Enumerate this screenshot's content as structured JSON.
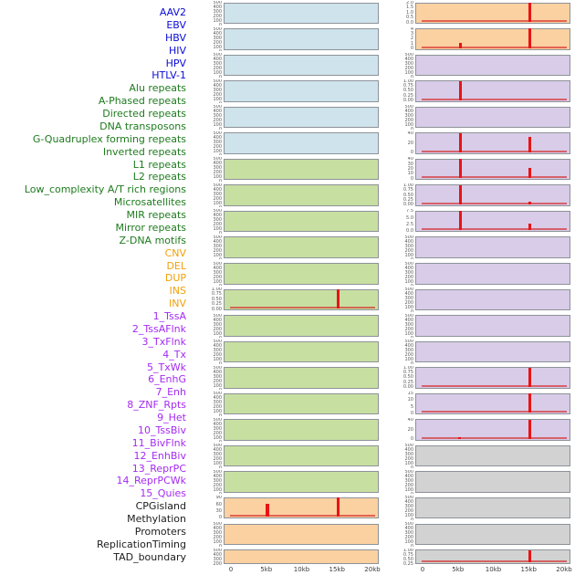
{
  "chart_data": {
    "type": "bar",
    "layout": "small-multiples, 2 columns x 22 rows, tracks listed top-to-bottom left column then right column",
    "x_axis": {
      "tick_labels": [
        "0",
        "5kb",
        "10kb",
        "15kb",
        "20kb"
      ],
      "tick_kb": [
        0,
        5,
        10,
        15,
        20
      ],
      "domain_kb": [
        0,
        20
      ]
    },
    "spike_color": "#e81414",
    "baseline_color": "rgba(214,40,40,0.65)",
    "categories": {
      "virus": {
        "label_color": "#0b0bd8",
        "panel_bg": "#cee3ec"
      },
      "repeats": {
        "label_color": "#1e7b1e",
        "panel_bg": "#c8dfa2"
      },
      "variants": {
        "label_color": "#f0a10c",
        "panel_bg": "#fbd1a1"
      },
      "chromatin": {
        "label_color": "#a42af2",
        "panel_bg": "#d8cce8"
      },
      "other": {
        "label_color": "#1c1c1c",
        "panel_bg": "#d2d2d2"
      }
    },
    "tracks": [
      {
        "label": "AAV2",
        "category": "virus",
        "column": "left",
        "row": 1,
        "y_ticks": [
          "500",
          "400",
          "300",
          "200",
          "100",
          "0"
        ],
        "spikes": [],
        "baseline": false
      },
      {
        "label": "EBV",
        "category": "virus",
        "column": "left",
        "row": 2,
        "y_ticks": [
          "500",
          "400",
          "300",
          "200",
          "100",
          "0"
        ],
        "spikes": [],
        "baseline": false
      },
      {
        "label": "HBV",
        "category": "virus",
        "column": "left",
        "row": 3,
        "y_ticks": [
          "500",
          "400",
          "300",
          "200",
          "100",
          "0"
        ],
        "spikes": [],
        "baseline": false
      },
      {
        "label": "HIV",
        "category": "virus",
        "column": "left",
        "row": 4,
        "y_ticks": [
          "500",
          "400",
          "300",
          "200",
          "100",
          "0"
        ],
        "spikes": [],
        "baseline": false
      },
      {
        "label": "HPV",
        "category": "virus",
        "column": "left",
        "row": 5,
        "y_ticks": [
          "500",
          "400",
          "300",
          "200",
          "100",
          "0"
        ],
        "spikes": [],
        "baseline": false
      },
      {
        "label": "HTLV-1",
        "category": "virus",
        "column": "left",
        "row": 6,
        "y_ticks": [
          "500",
          "400",
          "300",
          "200",
          "100",
          "0"
        ],
        "spikes": [],
        "baseline": false
      },
      {
        "label": "Alu repeats",
        "category": "repeats",
        "column": "left",
        "row": 7,
        "y_ticks": [
          "500",
          "400",
          "300",
          "200",
          "100",
          "0"
        ],
        "spikes": [],
        "baseline": false
      },
      {
        "label": "A-Phased repeats",
        "category": "repeats",
        "column": "left",
        "row": 8,
        "y_ticks": [
          "500",
          "400",
          "300",
          "200",
          "100",
          "0"
        ],
        "spikes": [],
        "baseline": false
      },
      {
        "label": "Directed repeats",
        "category": "repeats",
        "column": "left",
        "row": 9,
        "y_ticks": [
          "500",
          "400",
          "300",
          "200",
          "100",
          "0"
        ],
        "spikes": [],
        "baseline": false
      },
      {
        "label": "DNA transposons",
        "category": "repeats",
        "column": "left",
        "row": 10,
        "y_ticks": [
          "500",
          "400",
          "300",
          "200",
          "100",
          "0"
        ],
        "spikes": [],
        "baseline": false
      },
      {
        "label": "G-Quadruplex forming repeats",
        "category": "repeats",
        "column": "left",
        "row": 11,
        "y_ticks": [
          "500",
          "400",
          "300",
          "200",
          "100",
          "0"
        ],
        "spikes": [],
        "baseline": false
      },
      {
        "label": "Inverted repeats",
        "category": "repeats",
        "column": "left",
        "row": 12,
        "y_ticks": [
          "1.00",
          "0.75",
          "0.50",
          "0.25",
          "0.00"
        ],
        "spikes": [
          {
            "x_kb": 15,
            "height": 0.96
          }
        ],
        "baseline": true
      },
      {
        "label": "L1 repeats",
        "category": "repeats",
        "column": "left",
        "row": 13,
        "y_ticks": [
          "500",
          "400",
          "300",
          "200",
          "100",
          "0"
        ],
        "spikes": [],
        "baseline": false
      },
      {
        "label": "L2 repeats",
        "category": "repeats",
        "column": "left",
        "row": 14,
        "y_ticks": [
          "500",
          "400",
          "300",
          "200",
          "100",
          "0"
        ],
        "spikes": [],
        "baseline": false
      },
      {
        "label": "Low_complexity A/T rich regions",
        "category": "repeats",
        "column": "left",
        "row": 15,
        "y_ticks": [
          "500",
          "400",
          "300",
          "200",
          "100",
          "0"
        ],
        "spikes": [],
        "baseline": false
      },
      {
        "label": "Microsatellites",
        "category": "repeats",
        "column": "left",
        "row": 16,
        "y_ticks": [
          "500",
          "400",
          "300",
          "200",
          "100",
          "0"
        ],
        "spikes": [],
        "baseline": false
      },
      {
        "label": "MIR repeats",
        "category": "repeats",
        "column": "left",
        "row": 17,
        "y_ticks": [
          "500",
          "400",
          "300",
          "200",
          "100",
          "0"
        ],
        "spikes": [],
        "baseline": false
      },
      {
        "label": "Mirror repeats",
        "category": "repeats",
        "column": "left",
        "row": 18,
        "y_ticks": [
          "500",
          "400",
          "300",
          "200",
          "100",
          "0"
        ],
        "spikes": [],
        "baseline": false
      },
      {
        "label": "Z-DNA motifs",
        "category": "repeats",
        "column": "left",
        "row": 19,
        "y_ticks": [
          "500",
          "400",
          "300",
          "200",
          "100",
          "0"
        ],
        "spikes": [],
        "baseline": false
      },
      {
        "label": "CNV",
        "category": "variants",
        "column": "left",
        "row": 20,
        "y_ticks": [
          "90",
          "60",
          "30",
          "0"
        ],
        "spikes": [
          {
            "x_kb": 5,
            "height": 0.68
          },
          {
            "x_kb": 15,
            "height": 0.98
          }
        ],
        "baseline": true
      },
      {
        "label": "DEL",
        "category": "variants",
        "column": "left",
        "row": 21,
        "y_ticks": [
          "500",
          "400",
          "300",
          "200",
          "100",
          "0"
        ],
        "spikes": [],
        "baseline": false
      },
      {
        "label": "DUP",
        "category": "variants",
        "column": "left",
        "row": 22,
        "y_ticks": [
          "500",
          "400",
          "300",
          "200",
          "100",
          "0"
        ],
        "spikes": [],
        "baseline": false
      },
      {
        "label": "INS",
        "category": "variants",
        "column": "right",
        "row": 1,
        "y_ticks": [
          "2.0",
          "1.5",
          "1.0",
          "0.5",
          "0.0"
        ],
        "spikes": [
          {
            "x_kb": 15,
            "height": 0.98
          }
        ],
        "baseline": true
      },
      {
        "label": "INV",
        "category": "variants",
        "column": "right",
        "row": 2,
        "y_ticks": [
          "4",
          "3",
          "2",
          "1",
          "0"
        ],
        "spikes": [
          {
            "x_kb": 5.2,
            "height": 0.28
          },
          {
            "x_kb": 15,
            "height": 0.98
          }
        ],
        "baseline": true
      },
      {
        "label": "1_TssA",
        "category": "chromatin",
        "column": "right",
        "row": 3,
        "y_ticks": [
          "500",
          "400",
          "300",
          "200",
          "100",
          "0"
        ],
        "spikes": [],
        "baseline": false
      },
      {
        "label": "2_TssAFlnk",
        "category": "chromatin",
        "column": "right",
        "row": 4,
        "y_ticks": [
          "1.00",
          "0.75",
          "0.50",
          "0.25",
          "0.00"
        ],
        "spikes": [
          {
            "x_kb": 5.2,
            "height": 0.96
          }
        ],
        "baseline": true
      },
      {
        "label": "3_TxFlnk",
        "category": "chromatin",
        "column": "right",
        "row": 5,
        "y_ticks": [
          "500",
          "400",
          "300",
          "200",
          "100",
          "0"
        ],
        "spikes": [],
        "baseline": false
      },
      {
        "label": "4_Tx",
        "category": "chromatin",
        "column": "right",
        "row": 6,
        "y_ticks": [
          "40",
          "20",
          "0"
        ],
        "spikes": [
          {
            "x_kb": 5.2,
            "height": 0.98
          },
          {
            "x_kb": 15,
            "height": 0.78
          }
        ],
        "baseline": true
      },
      {
        "label": "5_TxWk",
        "category": "chromatin",
        "column": "right",
        "row": 7,
        "y_ticks": [
          "40",
          "30",
          "20",
          "10",
          "0"
        ],
        "spikes": [
          {
            "x_kb": 5.2,
            "height": 0.98
          },
          {
            "x_kb": 15,
            "height": 0.52
          }
        ],
        "baseline": true
      },
      {
        "label": "6_EnhG",
        "category": "chromatin",
        "column": "right",
        "row": 8,
        "y_ticks": [
          "1.00",
          "0.75",
          "0.50",
          "0.25",
          "0.00"
        ],
        "spikes": [
          {
            "x_kb": 5.2,
            "height": 0.98
          },
          {
            "x_kb": 15,
            "height": 0.15
          }
        ],
        "baseline": true
      },
      {
        "label": "7_Enh",
        "category": "chromatin",
        "column": "right",
        "row": 9,
        "y_ticks": [
          "7.5",
          "5.0",
          "2.5",
          "0.0"
        ],
        "spikes": [
          {
            "x_kb": 5.2,
            "height": 0.98
          },
          {
            "x_kb": 15,
            "height": 0.35
          }
        ],
        "baseline": true
      },
      {
        "label": "8_ZNF_Rpts",
        "category": "chromatin",
        "column": "right",
        "row": 10,
        "y_ticks": [
          "500",
          "400",
          "300",
          "200",
          "100",
          "0"
        ],
        "spikes": [],
        "baseline": false
      },
      {
        "label": "9_Het",
        "category": "chromatin",
        "column": "right",
        "row": 11,
        "y_ticks": [
          "500",
          "400",
          "300",
          "200",
          "100",
          "0"
        ],
        "spikes": [],
        "baseline": false
      },
      {
        "label": "10_TssBiv",
        "category": "chromatin",
        "column": "right",
        "row": 12,
        "y_ticks": [
          "500",
          "400",
          "300",
          "200",
          "100",
          "0"
        ],
        "spikes": [],
        "baseline": false
      },
      {
        "label": "11_BivFlnk",
        "category": "chromatin",
        "column": "right",
        "row": 13,
        "y_ticks": [
          "500",
          "400",
          "300",
          "200",
          "100",
          "0"
        ],
        "spikes": [],
        "baseline": false
      },
      {
        "label": "12_EnhBiv",
        "category": "chromatin",
        "column": "right",
        "row": 14,
        "y_ticks": [
          "500",
          "400",
          "300",
          "200",
          "100",
          "0"
        ],
        "spikes": [],
        "baseline": false
      },
      {
        "label": "13_ReprPC",
        "category": "chromatin",
        "column": "right",
        "row": 15,
        "y_ticks": [
          "1.00",
          "0.75",
          "0.50",
          "0.25",
          "0.00"
        ],
        "spikes": [
          {
            "x_kb": 15,
            "height": 0.96
          }
        ],
        "baseline": true
      },
      {
        "label": "14_ReprPCWk",
        "category": "chromatin",
        "column": "right",
        "row": 16,
        "y_ticks": [
          "15",
          "10",
          "5",
          "0"
        ],
        "spikes": [
          {
            "x_kb": 15,
            "height": 0.98
          }
        ],
        "baseline": true
      },
      {
        "label": "15_Quies",
        "category": "chromatin",
        "column": "right",
        "row": 17,
        "y_ticks": [
          "40",
          "20",
          "0"
        ],
        "spikes": [
          {
            "x_kb": 5.1,
            "height": 0.08
          },
          {
            "x_kb": 15,
            "height": 0.98
          }
        ],
        "baseline": true
      },
      {
        "label": "CPGisland",
        "category": "other",
        "column": "right",
        "row": 18,
        "y_ticks": [
          "500",
          "400",
          "300",
          "200",
          "100",
          "0"
        ],
        "spikes": [],
        "baseline": false
      },
      {
        "label": "Methylation",
        "category": "other",
        "column": "right",
        "row": 19,
        "y_ticks": [
          "500",
          "400",
          "300",
          "200",
          "100",
          "0"
        ],
        "spikes": [],
        "baseline": false
      },
      {
        "label": "Promoters",
        "category": "other",
        "column": "right",
        "row": 20,
        "y_ticks": [
          "500",
          "400",
          "300",
          "200",
          "100",
          "0"
        ],
        "spikes": [],
        "baseline": false
      },
      {
        "label": "ReplicationTiming",
        "category": "other",
        "column": "right",
        "row": 21,
        "y_ticks": [
          "500",
          "400",
          "300",
          "200",
          "100",
          "0"
        ],
        "spikes": [],
        "baseline": false
      },
      {
        "label": "TAD_boundary",
        "category": "other",
        "column": "right",
        "row": 22,
        "y_ticks": [
          "1.00",
          "0.75",
          "0.50",
          "0.25",
          "0.00"
        ],
        "spikes": [
          {
            "x_kb": 15,
            "height": 0.95
          }
        ],
        "baseline": true
      }
    ]
  }
}
